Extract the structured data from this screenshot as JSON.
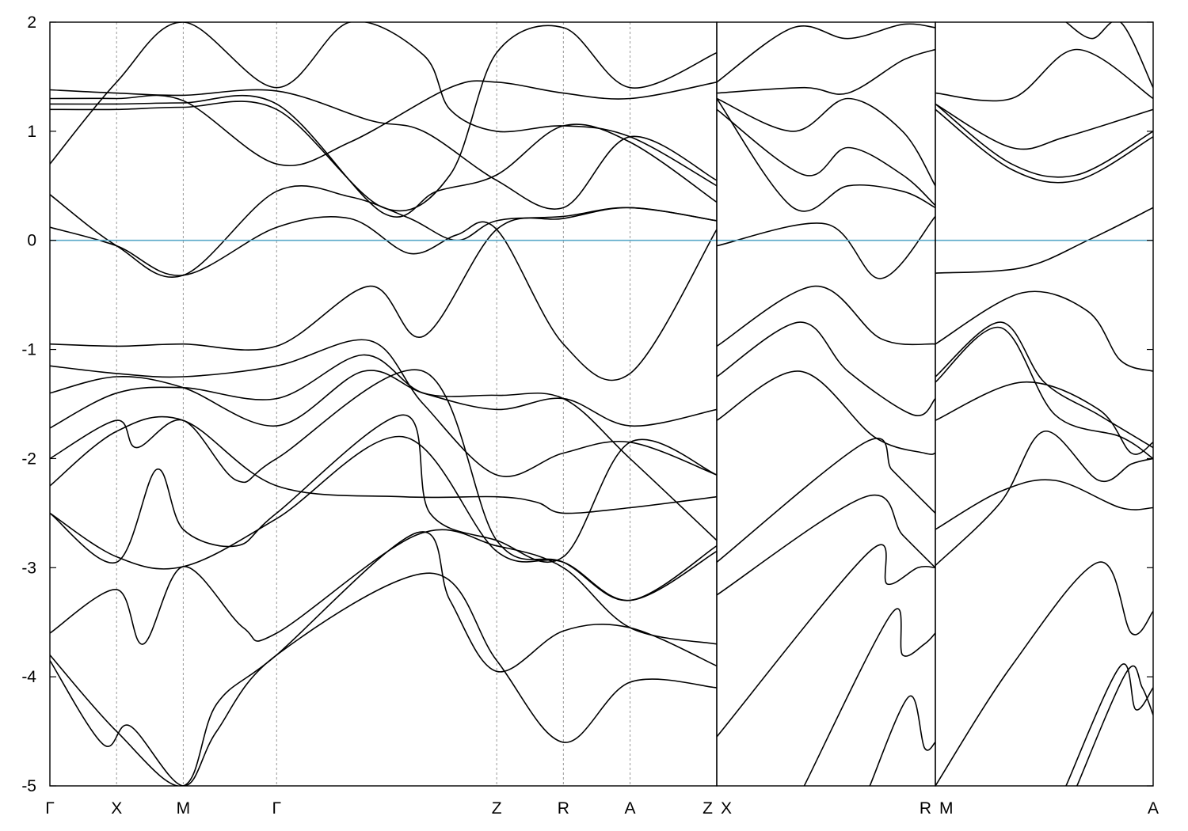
{
  "chart_data": {
    "type": "line",
    "title": "",
    "xlabel": "",
    "ylabel": "",
    "ylim": [
      -5,
      2
    ],
    "yticks": [
      "2",
      "1",
      "0",
      "-1",
      "-2",
      "-3",
      "-4",
      "-5"
    ],
    "grid": false,
    "legend": "none",
    "fermi_level": 0,
    "colors": {
      "bands": "#000000",
      "fermi": "#5aa9c9",
      "kpoint_lines": "#999999"
    },
    "segments": [
      {
        "labels": [
          "Γ",
          "X",
          "M",
          "Γ",
          "Z",
          "R",
          "A",
          "Z"
        ],
        "positions": [
          0,
          1,
          2,
          3.4,
          6.7,
          7.7,
          8.7,
          10.0
        ],
        "bands": [
          {
            "x": [
              0,
              1,
              2,
              3.4,
              4.5,
              5.4,
              6.1,
              6.7,
              7.7,
              8.7,
              10.0
            ],
            "y": [
              0.12,
              -0.05,
              -0.32,
              0.12,
              0.2,
              -0.12,
              0.05,
              0.1,
              -0.95,
              -1.22,
              0.1
            ]
          },
          {
            "x": [
              0,
              1,
              2,
              3.4,
              4.5,
              5.4,
              6.1,
              6.7,
              7.7,
              8.7,
              10.0
            ],
            "y": [
              0.42,
              -0.05,
              -0.32,
              0.45,
              0.4,
              0.2,
              0.0,
              0.18,
              0.22,
              0.3,
              0.18
            ]
          },
          {
            "x": [
              0,
              1,
              2,
              3.4,
              4.8,
              5.6,
              6.7,
              7.7,
              8.7,
              10.0
            ],
            "y": [
              -0.95,
              -0.97,
              -0.95,
              -0.97,
              -0.42,
              -0.88,
              0.1,
              0.2,
              0.3,
              0.18
            ]
          },
          {
            "x": [
              0,
              1,
              2,
              3.4,
              4.8,
              5.6,
              6.7,
              7.7,
              8.7,
              10.0
            ],
            "y": [
              -1.15,
              -1.22,
              -1.25,
              -1.15,
              -0.92,
              -1.5,
              -2.15,
              -1.95,
              -1.85,
              -2.15
            ]
          },
          {
            "x": [
              0,
              1,
              2,
              3.4,
              4.7,
              5.6,
              6.7,
              7.7,
              8.7,
              10.0
            ],
            "y": [
              -1.4,
              -1.25,
              -1.35,
              -1.7,
              -1.2,
              -1.4,
              -1.55,
              -1.45,
              -1.7,
              -1.55
            ]
          },
          {
            "x": [
              0,
              1,
              2,
              3.4,
              4.7,
              5.6,
              6.7,
              7.7,
              8.7,
              10.0
            ],
            "y": [
              -1.72,
              -1.4,
              -1.35,
              -1.45,
              -1.05,
              -1.4,
              -1.42,
              -1.45,
              -2.0,
              -2.75
            ]
          },
          {
            "x": [
              0,
              1,
              1.3,
              2,
              2.8,
              3.4,
              5.6,
              6.7,
              7.7,
              8.7,
              10.0
            ],
            "y": [
              -2.0,
              -1.65,
              -1.9,
              -1.65,
              -2.2,
              -2.0,
              -1.2,
              -2.75,
              -2.95,
              -3.3,
              -2.8
            ]
          },
          {
            "x": [
              0,
              1,
              2,
              3.4,
              5.3,
              6.7,
              7.3,
              7.7,
              8.7,
              10.0
            ],
            "y": [
              -2.25,
              -1.75,
              -1.65,
              -2.25,
              -2.35,
              -2.35,
              -2.4,
              -2.5,
              -2.45,
              -2.35
            ]
          },
          {
            "x": [
              0,
              1,
              1.6,
              2,
              2.8,
              3.4,
              5.3,
              5.7,
              6.7,
              7.7,
              8.7,
              10.0
            ],
            "y": [
              -2.5,
              -2.95,
              -2.1,
              -2.65,
              -2.8,
              -2.5,
              -1.6,
              -2.5,
              -2.75,
              -2.9,
              -1.85,
              -2.15
            ]
          },
          {
            "x": [
              0,
              1,
              2,
              3.4,
              5.3,
              6.7,
              7.7,
              8.7,
              10.0
            ],
            "y": [
              -2.5,
              -2.9,
              -2.99,
              -2.55,
              -1.8,
              -2.85,
              -2.95,
              -3.3,
              -2.85
            ]
          },
          {
            "x": [
              0,
              1,
              1.4,
              2,
              2.9,
              3.4,
              5.5,
              6.7,
              7.7,
              8.7,
              10.0
            ],
            "y": [
              -3.6,
              -3.2,
              -3.7,
              -2.99,
              -3.55,
              -3.6,
              -2.7,
              -2.8,
              -3.0,
              -3.55,
              -3.7
            ]
          },
          {
            "x": [
              0,
              1,
              2,
              2.5,
              3.4,
              5.5,
              6.0,
              6.7,
              7.7,
              8.7,
              10.0
            ],
            "y": [
              -3.8,
              -4.5,
              -5.0,
              -4.25,
              -3.8,
              -2.68,
              -3.3,
              -3.95,
              -3.58,
              -3.55,
              -3.9
            ]
          },
          {
            "x": [
              0,
              0.8,
              1.2,
              2,
              2.5,
              3.4,
              5.7,
              6.7,
              7.7,
              8.7,
              10.0
            ],
            "y": [
              -3.85,
              -4.62,
              -4.45,
              -5.0,
              -4.5,
              -3.8,
              -3.05,
              -3.85,
              -4.6,
              -4.05,
              -4.1
            ]
          },
          {
            "x": [
              0,
              1,
              2,
              3.4,
              4.5,
              5.6,
              6.0,
              6.7,
              7.7,
              8.7,
              10.0
            ],
            "y": [
              0.7,
              1.45,
              2.0,
              1.4,
              2.0,
              1.7,
              1.2,
              1.0,
              1.05,
              0.95,
              0.5
            ]
          },
          {
            "x": [
              0,
              1,
              2,
              3.4,
              4.8,
              5.6,
              6.7,
              7.7,
              8.7,
              10.0
            ],
            "y": [
              1.38,
              1.35,
              1.33,
              1.37,
              1.1,
              1.0,
              0.55,
              0.3,
              0.95,
              0.55
            ]
          },
          {
            "x": [
              0,
              1,
              2,
              3.4,
              5.0,
              5.8,
              6.7,
              7.7,
              8.7,
              10.0
            ],
            "y": [
              1.25,
              1.25,
              1.26,
              1.25,
              0.25,
              0.45,
              0.6,
              1.05,
              0.9,
              0.35
            ]
          },
          {
            "x": [
              0,
              1,
              2,
              3.4,
              5.0,
              6.0,
              6.7,
              7.7,
              8.7,
              10.0
            ],
            "y": [
              1.2,
              1.2,
              1.22,
              1.2,
              0.3,
              0.6,
              1.72,
              1.95,
              1.4,
              1.72
            ]
          },
          {
            "x": [
              0,
              1,
              2,
              3.4,
              4.5,
              6.0,
              6.7,
              7.7,
              8.7,
              10.0
            ],
            "y": [
              1.3,
              1.3,
              1.28,
              0.7,
              0.9,
              1.4,
              1.45,
              1.35,
              1.3,
              1.45
            ]
          }
        ]
      },
      {
        "labels": [
          "X",
          "R"
        ],
        "positions": [
          0,
          1
        ],
        "bands": [
          {
            "x": [
              0,
              0.5,
              0.75,
              1.0
            ],
            "y": [
              -0.05,
              0.15,
              -0.35,
              0.22
            ]
          },
          {
            "x": [
              0,
              0.45,
              0.75,
              1.0
            ],
            "y": [
              -0.97,
              -0.42,
              -0.9,
              -0.95
            ]
          },
          {
            "x": [
              0,
              0.38,
              0.6,
              0.9,
              1.0
            ],
            "y": [
              -1.25,
              -0.75,
              -1.2,
              -1.6,
              -1.45
            ]
          },
          {
            "x": [
              0,
              0.38,
              0.72,
              0.95,
              1.0
            ],
            "y": [
              -1.65,
              -1.2,
              -1.8,
              -1.95,
              -1.95
            ]
          },
          {
            "x": [
              0,
              0.68,
              0.8,
              0.9,
              1.0
            ],
            "y": [
              -2.95,
              -1.85,
              -2.1,
              -2.3,
              -2.5
            ]
          },
          {
            "x": [
              0,
              0.68,
              0.85,
              1.0
            ],
            "y": [
              -3.25,
              -2.35,
              -2.7,
              -3.0
            ]
          },
          {
            "x": [
              0,
              0.7,
              0.78,
              0.92,
              1.0
            ],
            "y": [
              -4.55,
              -2.85,
              -3.15,
              -3.0,
              -3.0
            ]
          },
          {
            "x": [
              0.4,
              0.8,
              0.85,
              0.95,
              1.0
            ],
            "y": [
              -5.0,
              -3.42,
              -3.8,
              -3.7,
              -3.6
            ]
          },
          {
            "x": [
              0.7,
              0.88,
              0.95,
              1.0
            ],
            "y": [
              -5.0,
              -4.18,
              -4.65,
              -4.6
            ]
          },
          {
            "x": [
              0,
              0.35,
              0.6,
              0.85,
              1.0
            ],
            "y": [
              1.45,
              1.95,
              1.85,
              1.98,
              1.95
            ]
          },
          {
            "x": [
              0,
              0.4,
              0.6,
              0.85,
              1.0
            ],
            "y": [
              1.35,
              1.4,
              1.35,
              1.65,
              1.75
            ]
          },
          {
            "x": [
              0,
              0.35,
              0.6,
              0.85,
              1.0
            ],
            "y": [
              1.3,
              1.0,
              1.3,
              1.0,
              0.5
            ]
          },
          {
            "x": [
              0,
              0.4,
              0.6,
              0.85,
              1.0
            ],
            "y": [
              1.2,
              0.6,
              0.85,
              0.6,
              0.32
            ]
          },
          {
            "x": [
              0,
              0.35,
              0.6,
              0.85,
              1.0
            ],
            "y": [
              1.3,
              0.3,
              0.5,
              0.45,
              0.3
            ]
          }
        ]
      },
      {
        "labels": [
          "M",
          "A"
        ],
        "positions": [
          0,
          1
        ],
        "bands": [
          {
            "x": [
              0,
              0.4,
              0.7,
              1.0
            ],
            "y": [
              -0.3,
              -0.25,
              0.0,
              0.3
            ]
          },
          {
            "x": [
              0,
              0.4,
              0.7,
              0.85,
              1.0
            ],
            "y": [
              -0.95,
              -0.48,
              -0.65,
              -1.1,
              -1.2
            ]
          },
          {
            "x": [
              0,
              0.3,
              0.5,
              0.75,
              1.0
            ],
            "y": [
              -1.25,
              -0.75,
              -1.3,
              -1.6,
              -1.9
            ]
          },
          {
            "x": [
              0,
              0.3,
              0.55,
              0.85,
              1.0
            ],
            "y": [
              -1.3,
              -0.8,
              -1.6,
              -1.8,
              -2.0
            ]
          },
          {
            "x": [
              0,
              0.4,
              0.75,
              0.9,
              1.0
            ],
            "y": [
              -1.65,
              -1.3,
              -1.55,
              -1.95,
              -1.85
            ]
          },
          {
            "x": [
              0,
              0.3,
              0.55,
              0.85,
              1.0
            ],
            "y": [
              -2.65,
              -2.3,
              -2.2,
              -2.45,
              -2.45
            ]
          },
          {
            "x": [
              0,
              0.3,
              0.5,
              0.75,
              0.9,
              1.0
            ],
            "y": [
              -2.98,
              -2.4,
              -1.75,
              -2.2,
              -2.05,
              -2.0
            ]
          },
          {
            "x": [
              0,
              0.35,
              0.75,
              0.9,
              1.0
            ],
            "y": [
              -5.0,
              -3.9,
              -2.95,
              -3.6,
              -3.4
            ]
          },
          {
            "x": [
              0.6,
              0.85,
              0.92,
              1.0
            ],
            "y": [
              -5.0,
              -3.9,
              -4.3,
              -4.1
            ]
          },
          {
            "x": [
              0.65,
              0.88,
              0.95,
              1.0
            ],
            "y": [
              -5.0,
              -3.95,
              -4.1,
              -4.35
            ]
          },
          {
            "x": [
              0,
              0.35,
              0.65,
              1.0
            ],
            "y": [
              1.35,
              1.3,
              1.75,
              1.3
            ]
          },
          {
            "x": [
              0,
              0.35,
              0.6,
              1.0
            ],
            "y": [
              1.25,
              0.85,
              0.95,
              1.2
            ]
          },
          {
            "x": [
              0,
              0.35,
              0.65,
              1.0
            ],
            "y": [
              1.25,
              0.7,
              0.6,
              1.0
            ]
          },
          {
            "x": [
              0,
              0.35,
              0.65,
              1.0
            ],
            "y": [
              1.2,
              0.65,
              0.55,
              0.95
            ]
          },
          {
            "x": [
              0.6,
              0.72,
              0.85,
              1.0
            ],
            "y": [
              2.0,
              1.85,
              2.0,
              1.4
            ]
          }
        ]
      }
    ]
  }
}
